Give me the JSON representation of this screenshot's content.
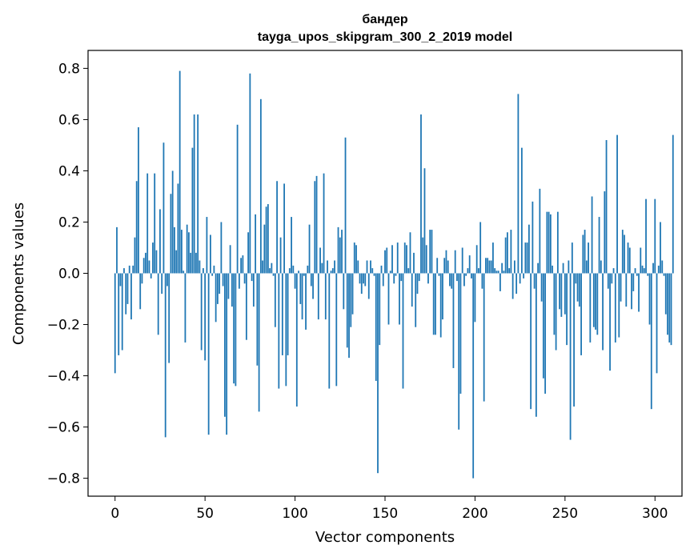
{
  "chart_data": {
    "type": "bar",
    "title_line1": "бандер",
    "title_line2": "tayga_upos_skipgram_300_2_2019 model",
    "xlabel": "Vector components",
    "ylabel": "Components values",
    "xlim": [
      -15,
      315
    ],
    "ylim": [
      -0.87,
      0.87
    ],
    "xticks": [
      0,
      50,
      100,
      150,
      200,
      250,
      300
    ],
    "xtick_labels": [
      "0",
      "50",
      "100",
      "150",
      "200",
      "250",
      "300"
    ],
    "yticks": [
      0.8,
      0.6,
      0.4,
      0.2,
      0.0,
      -0.2,
      -0.4,
      -0.6,
      -0.8
    ],
    "ytick_labels": [
      "0.8",
      "0.6",
      "0.4",
      "0.2",
      "0.0",
      "−0.2",
      "−0.4",
      "−0.6",
      "−0.8"
    ],
    "bar_color": "#1f77b4",
    "values": [
      -0.39,
      0.18,
      -0.32,
      -0.05,
      -0.3,
      0.02,
      -0.16,
      -0.12,
      0.03,
      -0.18,
      0.03,
      0.14,
      0.36,
      0.57,
      -0.14,
      -0.04,
      0.06,
      0.08,
      0.39,
      0.05,
      -0.02,
      0.12,
      0.39,
      0.09,
      -0.24,
      0.25,
      -0.08,
      0.51,
      -0.64,
      -0.05,
      -0.35,
      0.31,
      0.4,
      0.18,
      0.09,
      0.35,
      0.79,
      0.17,
      0.01,
      -0.27,
      0.19,
      0.16,
      0.08,
      0.49,
      0.62,
      0.08,
      0.62,
      0.05,
      -0.3,
      0.02,
      -0.34,
      0.22,
      -0.63,
      0.15,
      -0.01,
      0.03,
      -0.19,
      -0.12,
      -0.08,
      0.2,
      -0.05,
      -0.56,
      -0.63,
      -0.1,
      0.11,
      -0.13,
      -0.43,
      -0.44,
      0.58,
      -0.06,
      0.06,
      0.07,
      -0.04,
      -0.26,
      0.16,
      0.78,
      -0.03,
      -0.13,
      0.23,
      -0.36,
      -0.54,
      0.68,
      0.05,
      0.19,
      0.26,
      0.27,
      0.02,
      0.04,
      -0.01,
      -0.21,
      0.36,
      -0.45,
      0.14,
      -0.32,
      0.35,
      -0.44,
      -0.32,
      0.02,
      0.22,
      0.03,
      -0.06,
      -0.52,
      0.01,
      -0.12,
      -0.18,
      -0.01,
      -0.22,
      0.03,
      0.19,
      -0.05,
      -0.1,
      0.36,
      0.38,
      -0.18,
      0.1,
      0.04,
      0.39,
      -0.18,
      0.05,
      -0.45,
      0.01,
      0.02,
      0.05,
      -0.44,
      0.18,
      0.14,
      0.17,
      -0.14,
      0.53,
      -0.29,
      -0.33,
      -0.21,
      -0.16,
      0.12,
      0.11,
      0.05,
      -0.04,
      -0.08,
      -0.04,
      -0.05,
      0.05,
      -0.1,
      0.05,
      0.02,
      -0.01,
      -0.42,
      -0.78,
      -0.28,
      0.03,
      -0.05,
      0.09,
      0.1,
      -0.2,
      0.01,
      0.11,
      -0.04,
      -0.01,
      0.12,
      -0.2,
      -0.03,
      -0.45,
      0.12,
      0.11,
      0.02,
      0.16,
      -0.13,
      0.08,
      -0.21,
      -0.08,
      -0.03,
      0.62,
      0.14,
      0.41,
      0.11,
      -0.04,
      0.17,
      0.17,
      -0.24,
      -0.24,
      0.06,
      -0.01,
      -0.25,
      -0.18,
      0.06,
      0.09,
      0.05,
      -0.05,
      -0.06,
      -0.37,
      0.09,
      -0.03,
      -0.61,
      -0.47,
      0.1,
      -0.05,
      -0.01,
      0.02,
      0.07,
      -0.02,
      -0.8,
      -0.19,
      0.11,
      0.02,
      0.2,
      -0.06,
      -0.5,
      0.06,
      0.06,
      0.05,
      0.05,
      0.12,
      0.02,
      0.01,
      0.01,
      -0.07,
      0.04,
      0.01,
      0.14,
      0.16,
      0.02,
      0.17,
      -0.1,
      0.05,
      -0.08,
      0.7,
      -0.04,
      0.49,
      -0.02,
      0.12,
      0.12,
      0.19,
      -0.53,
      0.28,
      -0.06,
      -0.56,
      0.04,
      0.33,
      -0.11,
      -0.41,
      -0.47,
      0.24,
      0.24,
      0.23,
      0.03,
      -0.24,
      -0.3,
      0.24,
      -0.14,
      -0.17,
      0.04,
      -0.16,
      -0.28,
      0.05,
      -0.65,
      0.12,
      -0.52,
      -0.04,
      -0.11,
      -0.13,
      -0.32,
      0.15,
      0.17,
      0.05,
      0.12,
      -0.27,
      0.3,
      -0.21,
      -0.22,
      -0.24,
      0.22,
      0.05,
      -0.3,
      0.32,
      0.52,
      -0.06,
      -0.38,
      -0.04,
      0.02,
      -0.27,
      0.54,
      -0.25,
      -0.11,
      0.17,
      0.15,
      -0.13,
      0.12,
      0.1,
      -0.14,
      -0.07,
      0.02,
      -0.01,
      -0.15,
      0.1,
      0.03,
      0.02,
      0.29,
      -0.01,
      -0.2,
      -0.53,
      0.04,
      0.29,
      -0.39,
      0.03,
      0.2,
      0.05,
      -0.01,
      -0.16,
      -0.24,
      -0.27,
      -0.28,
      0.54
    ]
  }
}
